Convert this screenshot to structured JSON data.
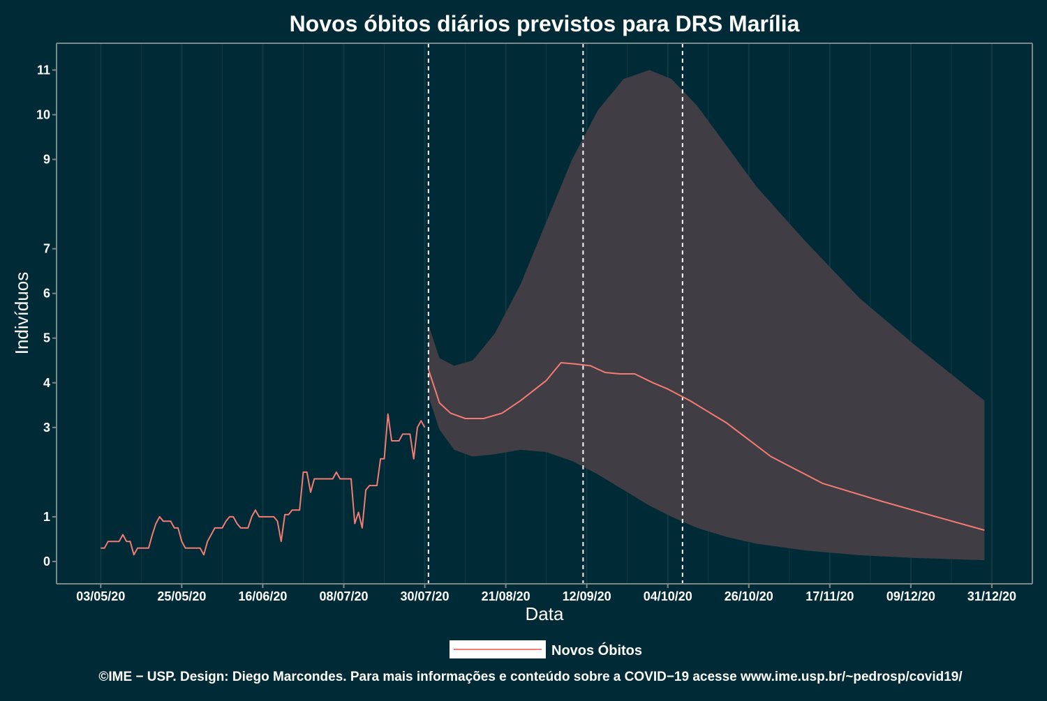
{
  "chart_data": {
    "type": "line",
    "title": "Novos óbitos diários previstos para DRS Marília",
    "xlabel": "Data",
    "ylabel": "Indivíduos",
    "x_ticks": [
      "03/05/20",
      "25/05/20",
      "16/06/20",
      "08/07/20",
      "30/07/20",
      "21/08/20",
      "12/09/20",
      "04/10/20",
      "26/10/20",
      "17/11/20",
      "09/12/20",
      "31/12/20"
    ],
    "y_ticks": [
      0,
      1,
      3,
      4,
      5,
      6,
      7,
      9,
      10,
      11
    ],
    "ylim": [
      -0.5,
      11.6
    ],
    "xlim": [
      "2020-04-21",
      "2021-01-11"
    ],
    "grid": true,
    "legend_position": "bottom",
    "vlines": [
      "2020-07-31",
      "2020-09-11",
      "2020-10-08"
    ],
    "colors": {
      "background": "#002b36",
      "line": "#f47c74",
      "band": "#413d44",
      "axis": "#7a8a8c",
      "grid": "#0f3a44",
      "vline": "#ffffff"
    },
    "observed": {
      "x": [
        "2020-05-03",
        "2020-05-04",
        "2020-05-05",
        "2020-05-06",
        "2020-05-07",
        "2020-05-08",
        "2020-05-09",
        "2020-05-10",
        "2020-05-11",
        "2020-05-12",
        "2020-05-13",
        "2020-05-14",
        "2020-05-15",
        "2020-05-16",
        "2020-05-17",
        "2020-05-18",
        "2020-05-19",
        "2020-05-20",
        "2020-05-21",
        "2020-05-22",
        "2020-05-23",
        "2020-05-24",
        "2020-05-25",
        "2020-05-26",
        "2020-05-27",
        "2020-05-28",
        "2020-05-29",
        "2020-05-30",
        "2020-05-31",
        "2020-06-01",
        "2020-06-02",
        "2020-06-03",
        "2020-06-04",
        "2020-06-05",
        "2020-06-06",
        "2020-06-07",
        "2020-06-08",
        "2020-06-09",
        "2020-06-10",
        "2020-06-11",
        "2020-06-12",
        "2020-06-13",
        "2020-06-14",
        "2020-06-15",
        "2020-06-16",
        "2020-06-17",
        "2020-06-18",
        "2020-06-19",
        "2020-06-20",
        "2020-06-21",
        "2020-06-22",
        "2020-06-23",
        "2020-06-24",
        "2020-06-25",
        "2020-06-26",
        "2020-06-27",
        "2020-06-28",
        "2020-06-29",
        "2020-06-30",
        "2020-07-01",
        "2020-07-02",
        "2020-07-03",
        "2020-07-04",
        "2020-07-05",
        "2020-07-06",
        "2020-07-07",
        "2020-07-08",
        "2020-07-09",
        "2020-07-10",
        "2020-07-11",
        "2020-07-12",
        "2020-07-13",
        "2020-07-14",
        "2020-07-15",
        "2020-07-16",
        "2020-07-17",
        "2020-07-18",
        "2020-07-19",
        "2020-07-20",
        "2020-07-21",
        "2020-07-22",
        "2020-07-23",
        "2020-07-24",
        "2020-07-25",
        "2020-07-26",
        "2020-07-27",
        "2020-07-28",
        "2020-07-29",
        "2020-07-30"
      ],
      "y": [
        0.3,
        0.3,
        0.45,
        0.45,
        0.45,
        0.45,
        0.6,
        0.45,
        0.45,
        0.15,
        0.3,
        0.3,
        0.3,
        0.3,
        0.6,
        0.85,
        1.0,
        0.9,
        0.9,
        0.9,
        0.75,
        0.75,
        0.45,
        0.3,
        0.3,
        0.3,
        0.3,
        0.3,
        0.15,
        0.45,
        0.6,
        0.75,
        0.75,
        0.75,
        0.9,
        1.0,
        1.0,
        0.85,
        0.75,
        0.75,
        0.75,
        1.0,
        1.15,
        1.0,
        1.0,
        1.0,
        1.0,
        1.0,
        0.9,
        0.45,
        1.05,
        1.05,
        1.15,
        1.15,
        1.15,
        2.0,
        2.0,
        1.55,
        1.85,
        1.85,
        1.85,
        1.85,
        1.85,
        1.85,
        2.0,
        1.85,
        1.85,
        1.85,
        1.85,
        0.85,
        1.1,
        0.75,
        1.6,
        1.7,
        1.7,
        1.7,
        2.3,
        2.3,
        3.3,
        2.7,
        2.7,
        2.7,
        2.85,
        2.85,
        2.85,
        2.3,
        3.0,
        3.15,
        3.0
      ]
    },
    "forecast": {
      "x": [
        "2020-07-31",
        "2020-08-03",
        "2020-08-06",
        "2020-08-10",
        "2020-08-15",
        "2020-08-20",
        "2020-08-25",
        "2020-09-01",
        "2020-09-05",
        "2020-09-09",
        "2020-09-13",
        "2020-09-17",
        "2020-09-21",
        "2020-09-25",
        "2020-09-30",
        "2020-10-04",
        "2020-10-10",
        "2020-10-20",
        "2020-11-01",
        "2020-11-15",
        "2020-12-01",
        "2020-12-15",
        "2020-12-29"
      ],
      "y": [
        4.3,
        3.55,
        3.32,
        3.2,
        3.2,
        3.32,
        3.6,
        4.05,
        4.45,
        4.42,
        4.38,
        4.23,
        4.2,
        4.2,
        4.0,
        3.86,
        3.6,
        3.1,
        2.35,
        1.75,
        1.35,
        1.02,
        0.7
      ]
    },
    "band": {
      "x": [
        "2020-07-31",
        "2020-08-03",
        "2020-08-07",
        "2020-08-12",
        "2020-08-18",
        "2020-08-25",
        "2020-09-01",
        "2020-09-08",
        "2020-09-15",
        "2020-09-22",
        "2020-09-29",
        "2020-10-05",
        "2020-10-12",
        "2020-10-20",
        "2020-10-28",
        "2020-11-10",
        "2020-11-25",
        "2020-12-10",
        "2020-12-29"
      ],
      "upper": [
        5.3,
        4.55,
        4.38,
        4.5,
        5.1,
        6.2,
        7.6,
        9.0,
        10.1,
        10.8,
        11.0,
        10.8,
        10.2,
        9.3,
        8.4,
        7.2,
        5.9,
        4.85,
        3.6
      ],
      "lower": [
        3.7,
        2.95,
        2.5,
        2.35,
        2.4,
        2.5,
        2.45,
        2.25,
        1.95,
        1.6,
        1.25,
        1.0,
        0.75,
        0.55,
        0.4,
        0.25,
        0.14,
        0.08,
        0.03
      ]
    },
    "series": [
      {
        "name": "Novos Óbitos"
      }
    ]
  },
  "caption": "©IME − USP. Design: Diego Marcondes. Para mais informações e conteúdo sobre a COVID−19 acesse www.ime.usp.br/~pedrosp/covid19/"
}
